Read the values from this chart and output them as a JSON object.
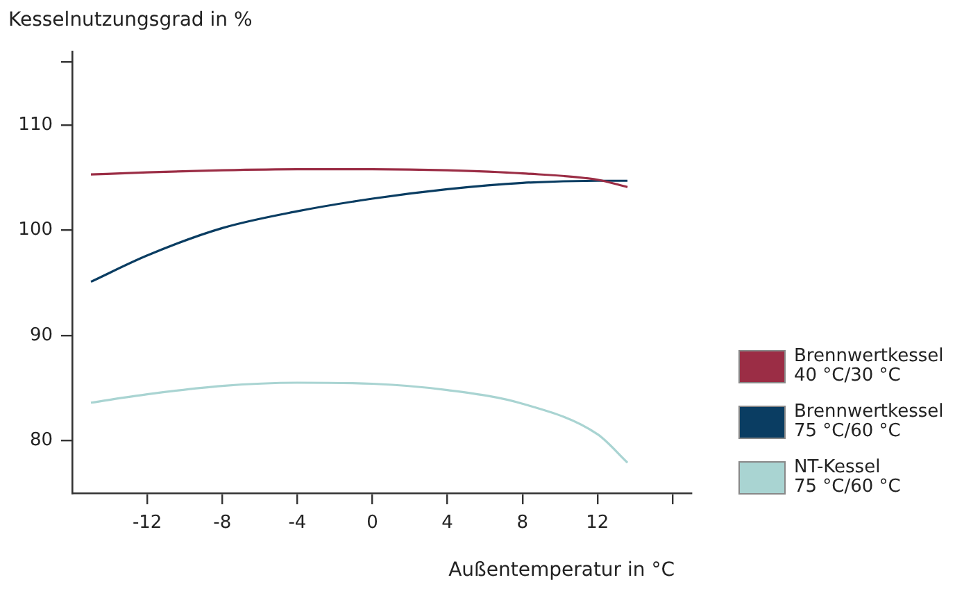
{
  "chart_data": {
    "type": "line",
    "ylabel": "Kesselnutzungsgrad in %",
    "xlabel": "Außentemperatur in °C",
    "xlim": [
      -16,
      17
    ],
    "xticks": [
      -12,
      -8,
      -4,
      0,
      4,
      8,
      12,
      {
        "value": 16,
        "label": null
      }
    ],
    "ylim": [
      75,
      117
    ],
    "yticks": [
      80,
      90,
      100,
      110,
      {
        "value": 116,
        "label": null
      }
    ],
    "x": [
      -15,
      -12,
      -8,
      -4,
      0,
      4,
      8,
      12,
      13.6
    ],
    "grid": false,
    "legend": "right",
    "marker": "none",
    "line_style": "solid",
    "series": [
      {
        "name": "Brennwertkessel 40 °C/30 °C",
        "color": "#9b2d45",
        "values": [
          105.3,
          105.5,
          105.7,
          105.8,
          105.8,
          105.7,
          105.4,
          104.8,
          104.1
        ]
      },
      {
        "name": "Brennwertkessel 75 °C/60 °C",
        "color": "#0a3d62",
        "values": [
          95.1,
          97.6,
          100.2,
          101.8,
          103.0,
          103.9,
          104.5,
          104.7,
          104.7
        ]
      },
      {
        "name": "NT-Kessel 75 °C/60 °C",
        "color": "#a9d4d2",
        "values": [
          83.6,
          84.4,
          85.2,
          85.5,
          85.4,
          84.8,
          83.5,
          80.6,
          77.9
        ]
      }
    ]
  }
}
